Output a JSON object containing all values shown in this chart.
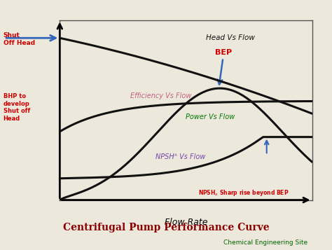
{
  "title": "Centrifugal Pump Performance Curve",
  "subtitle": "Chemical Engineering Site",
  "title_color": "#8b0000",
  "subtitle_color": "#006400",
  "xlabel": "Flow Rate",
  "background_color": "#ede8dc",
  "plot_bg_color": "#ede8dc",
  "curve_color": "#111111",
  "curve_lw": 2.2,
  "head_label": "Head Vs Flow",
  "efficiency_label": "Efficiency Vs Flow",
  "power_label": "Power Vs Flow",
  "npshr_label": "NPSHᴬ Vs Flow",
  "bep_label": "BEP",
  "shut_off_head_label": "Shut\nOff Head",
  "bhp_label": "BHP to\ndevelop\nShut off\nHead",
  "npsha_label": "NPSHₐ Sharp rise beyond BEP",
  "head_label_color": "#111111",
  "efficiency_label_color": "#c06080",
  "power_label_color": "#007700",
  "npshr_label_color": "#7744aa",
  "bep_color": "#cc0000",
  "shut_off_color": "#cc0000",
  "bhp_color": "#cc0000",
  "npsha_color": "#cc0000",
  "arrow_color": "#3366bb",
  "border_color": "#555555"
}
